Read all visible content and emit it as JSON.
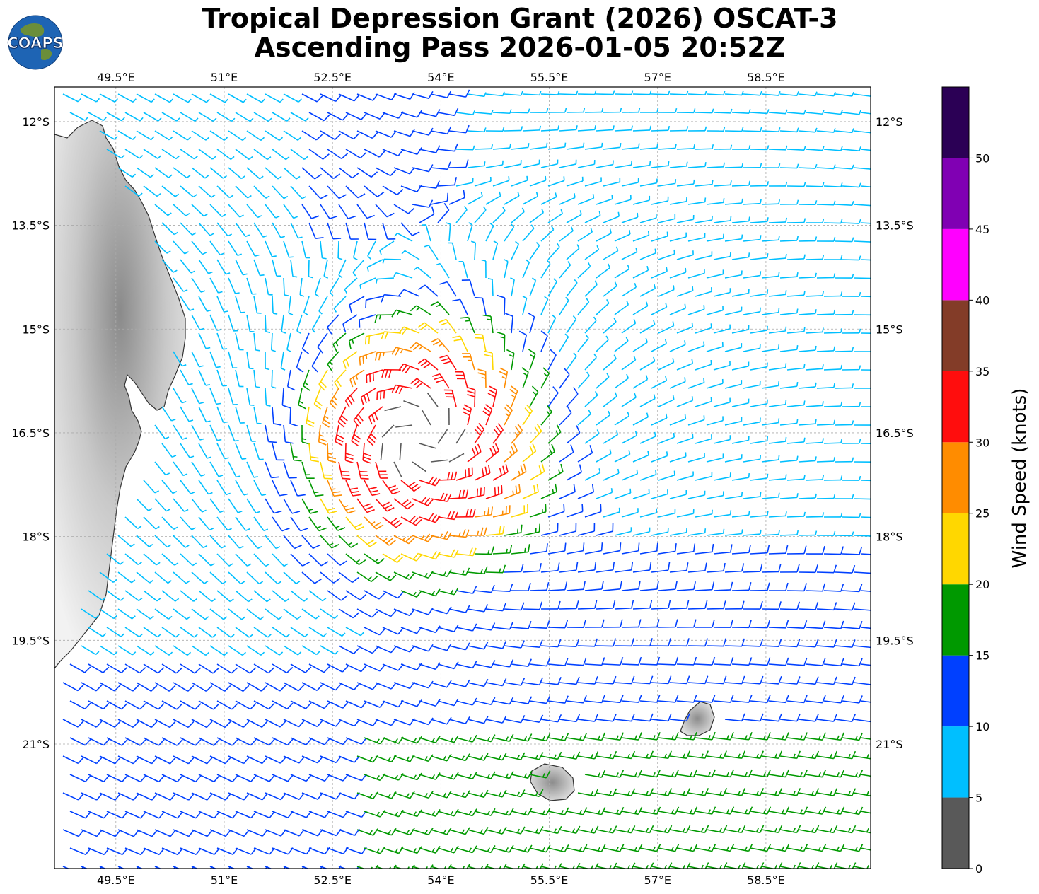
{
  "title": {
    "line1": "Tropical Depression Grant (2026) OSCAT-3",
    "line2": "Ascending Pass 2026-01-05 20:52Z"
  },
  "logo": {
    "text": "COAPS",
    "icon": "globe-icon"
  },
  "map": {
    "lon_range": [
      48.65,
      59.95
    ],
    "lat_range": [
      -22.8,
      -11.5
    ],
    "lon_ticks": [
      {
        "value": 49.5,
        "label": "49.5°E"
      },
      {
        "value": 51,
        "label": "51°E"
      },
      {
        "value": 52.5,
        "label": "52.5°E"
      },
      {
        "value": 54,
        "label": "54°E"
      },
      {
        "value": 55.5,
        "label": "55.5°E"
      },
      {
        "value": 57,
        "label": "57°E"
      },
      {
        "value": 58.5,
        "label": "58.5°E"
      }
    ],
    "lat_ticks": [
      {
        "value": -12,
        "label": "12°S"
      },
      {
        "value": -13.5,
        "label": "13.5°S"
      },
      {
        "value": -15,
        "label": "15°S"
      },
      {
        "value": -16.5,
        "label": "16.5°S"
      },
      {
        "value": -18,
        "label": "18°S"
      },
      {
        "value": -19.5,
        "label": "19.5°S"
      },
      {
        "value": -21,
        "label": "21°S"
      }
    ],
    "gridlines": true,
    "land_features": [
      "Madagascar",
      "Reunion",
      "Mauritius"
    ],
    "storm_center": {
      "lon": 53.7,
      "lat": -16.6
    }
  },
  "colorbar": {
    "label": "Wind Speed (knots)",
    "ticks": [
      "0",
      "5",
      "10",
      "15",
      "20",
      "25",
      "30",
      "35",
      "40",
      "45",
      "50"
    ],
    "bins": [
      {
        "min": 0,
        "max": 5,
        "color": "#595959"
      },
      {
        "min": 5,
        "max": 10,
        "color": "#00bfff"
      },
      {
        "min": 10,
        "max": 15,
        "color": "#0040ff"
      },
      {
        "min": 15,
        "max": 20,
        "color": "#009900"
      },
      {
        "min": 20,
        "max": 25,
        "color": "#ffd700"
      },
      {
        "min": 25,
        "max": 30,
        "color": "#ff8c00"
      },
      {
        "min": 30,
        "max": 35,
        "color": "#ff0d0d"
      },
      {
        "min": 35,
        "max": 40,
        "color": "#833c28"
      },
      {
        "min": 40,
        "max": 45,
        "color": "#ff00ff"
      },
      {
        "min": 45,
        "max": 50,
        "color": "#8000b3"
      },
      {
        "min": 50,
        "max": 55,
        "color": "#2b0055"
      }
    ]
  }
}
